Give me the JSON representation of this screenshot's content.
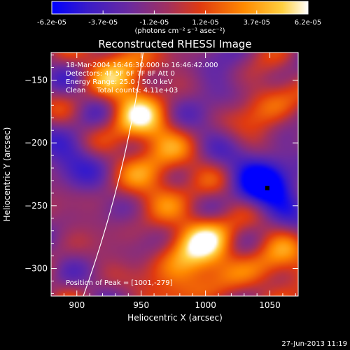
{
  "chart_data": {
    "type": "heatmap",
    "title": "Reconstructed RHESSI Image",
    "xlabel": "Heliocentric X (arcsec)",
    "ylabel": "Heliocentric Y (arcsec)",
    "xlim": [
      880,
      1072
    ],
    "ylim": [
      -322,
      -128
    ],
    "xticks": [
      900,
      950,
      1000,
      1050
    ],
    "yticks": [
      -150,
      -200,
      -250,
      -300
    ],
    "colorbar": {
      "ticks": [
        "-6.2e-05",
        "-3.7e-05",
        "-1.2e-05",
        "1.2e-05",
        "3.7e-05",
        "6.2e-05"
      ],
      "unit_label": "(photons cm⁻² s⁻¹ asec⁻²)",
      "colors": [
        "#0000ff",
        "#3a1cc8",
        "#6a2aa0",
        "#a03060",
        "#e03a10",
        "#ff8a00",
        "#ffd040",
        "#ffffff"
      ]
    },
    "annotations": [
      "18-Mar-2004 16:46:30.000 to 16:46:42.000",
      "Detectors: 4F 5F 6F 7F 8F Att 0",
      "Energy Range: 25.0 - 50.0 keV",
      "Clean     Total counts: 4.11e+03"
    ],
    "peak_label": "Position of Peak = [1001,-279]",
    "peak": {
      "x": 1001,
      "y": -279
    },
    "sources": [
      {
        "x": 935,
        "y": -140,
        "value": 4.5e-05
      },
      {
        "x": 948,
        "y": -185,
        "value": 5.5e-05
      },
      {
        "x": 965,
        "y": -228,
        "value": 4e-05
      },
      {
        "x": 1001,
        "y": -279,
        "value": 6.2e-05
      },
      {
        "x": 1045,
        "y": -170,
        "value": 3.5e-05
      },
      {
        "x": 1055,
        "y": -300,
        "value": 4e-05
      },
      {
        "x": 980,
        "y": -310,
        "value": 3.8e-05
      },
      {
        "x": 1048,
        "y": -232,
        "value": -6e-05
      },
      {
        "x": 900,
        "y": -210,
        "value": -2.5e-05
      },
      {
        "x": 1010,
        "y": -160,
        "value": -2e-05
      }
    ]
  },
  "timestamp": "27-Jun-2013 11:19"
}
